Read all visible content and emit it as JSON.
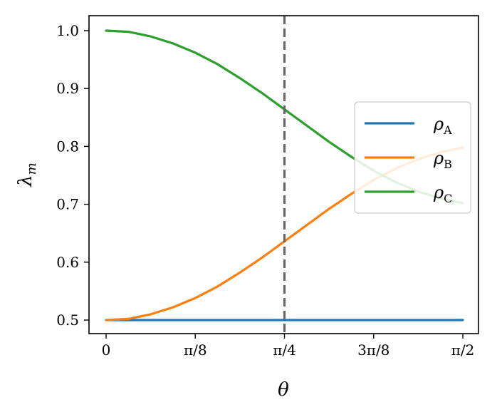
{
  "chart_data": {
    "type": "line",
    "xlabel": "θ",
    "ylabel": "λ",
    "ylabel_sub": "m",
    "xlim": [
      0,
      1.5708
    ],
    "ylim": [
      0.475,
      1.025
    ],
    "xticks": [
      {
        "value": 0,
        "label": "0"
      },
      {
        "value": 0.3927,
        "label": "π/8"
      },
      {
        "value": 0.7854,
        "label": "π/4"
      },
      {
        "value": 1.1781,
        "label": "3π/8"
      },
      {
        "value": 1.5708,
        "label": "π/2"
      }
    ],
    "yticks": [
      {
        "value": 0.5,
        "label": "0.5"
      },
      {
        "value": 0.6,
        "label": "0.6"
      },
      {
        "value": 0.7,
        "label": "0.7"
      },
      {
        "value": 0.8,
        "label": "0.8"
      },
      {
        "value": 0.9,
        "label": "0.9"
      },
      {
        "value": 1.0,
        "label": "1.0"
      }
    ],
    "vline": {
      "x": 0.7854,
      "color": "#666666",
      "style": "dashed"
    },
    "grid": false,
    "legend_position": "center-right",
    "x": [
      0,
      0.0982,
      0.1963,
      0.2945,
      0.3927,
      0.4909,
      0.589,
      0.6872,
      0.7854,
      0.8836,
      0.9817,
      1.0799,
      1.1781,
      1.2763,
      1.3744,
      1.4726,
      1.5708
    ],
    "series": [
      {
        "name": "ρ",
        "sub": "A",
        "color": "#1f77b4",
        "values": [
          0.5,
          0.5,
          0.5,
          0.5,
          0.5,
          0.5,
          0.5,
          0.5,
          0.5,
          0.5,
          0.5,
          0.5,
          0.5,
          0.5,
          0.5,
          0.5,
          0.5
        ]
      },
      {
        "name": "ρ",
        "sub": "B",
        "color": "#ff7f0e",
        "values": [
          0.5,
          0.502,
          0.51,
          0.522,
          0.538,
          0.558,
          0.582,
          0.608,
          0.636,
          0.664,
          0.692,
          0.718,
          0.742,
          0.762,
          0.778,
          0.79,
          0.798
        ]
      },
      {
        "name": "ρ",
        "sub": "C",
        "color": "#2ca02c",
        "values": [
          1.0,
          0.998,
          0.99,
          0.978,
          0.962,
          0.942,
          0.918,
          0.892,
          0.864,
          0.836,
          0.808,
          0.782,
          0.758,
          0.738,
          0.722,
          0.71,
          0.702
        ]
      }
    ]
  }
}
